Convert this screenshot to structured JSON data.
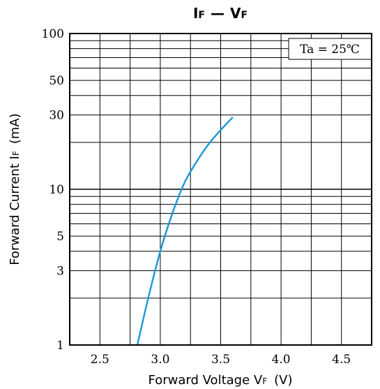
{
  "chart_data": {
    "type": "line",
    "title": {
      "main1": "I",
      "sub1": "F",
      "dash": "—",
      "main2": "V",
      "sub2": "F"
    },
    "xlabel": {
      "main": "Forward Voltage  V",
      "sub": "F",
      "unit": "(V)"
    },
    "ylabel": {
      "main": "Forward Current  I",
      "sub": "F",
      "unit": "(mA)"
    },
    "xlim": [
      2.25,
      4.75
    ],
    "ylim": [
      1,
      100
    ],
    "yscale": "log",
    "x_ticks": [
      2.5,
      3.0,
      3.5,
      4.0,
      4.5
    ],
    "x_tick_labels": [
      "2.5",
      "3.0",
      "3.5",
      "4.0",
      "4.5"
    ],
    "y_ticks": [
      1,
      3,
      5,
      10,
      30,
      50,
      100
    ],
    "y_tick_labels": [
      "1",
      "3",
      "5",
      "10",
      "30",
      "50",
      "100"
    ],
    "annotation": "Ta = 25℃",
    "grid": true,
    "line_color": "#1f9bd7",
    "series": [
      {
        "x": [
          2.81,
          2.9,
          3.0,
          3.1,
          3.2,
          3.3,
          3.4,
          3.5,
          3.6
        ],
        "y": [
          1.0,
          2.0,
          4.0,
          7.0,
          11.0,
          15.0,
          19.5,
          24.0,
          29.0
        ]
      }
    ]
  }
}
